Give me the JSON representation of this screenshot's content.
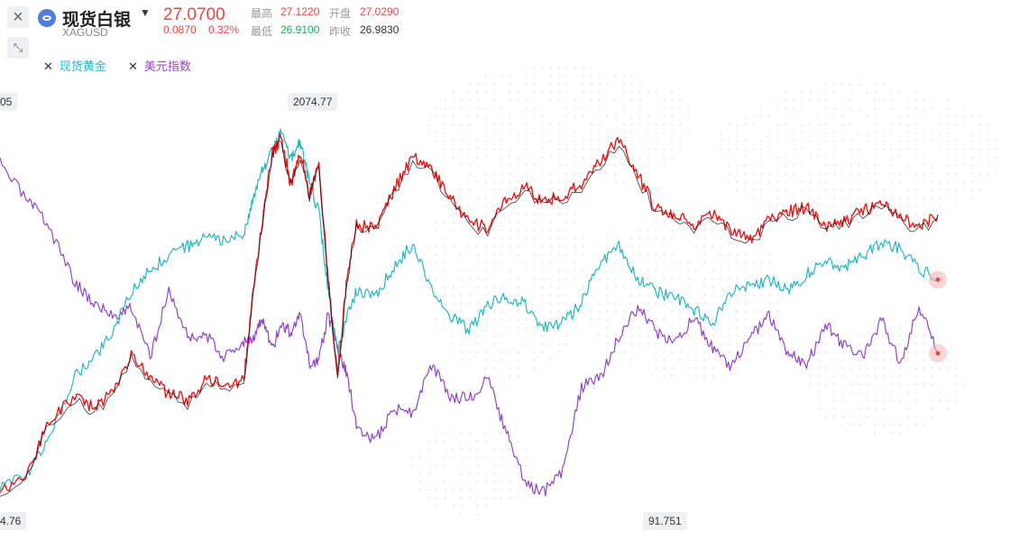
{
  "header": {
    "close_icon": "close-icon",
    "collapse_icon": "collapse-icon",
    "symbol_name": "现货白银",
    "symbol_code": "XAGUSD",
    "dropdown_icon": "chevron-down-icon",
    "price": "27.0700",
    "change": "0.0870",
    "change_pct": "0.32%",
    "high_label": "最高",
    "high_value": "27.1220",
    "open_label": "开盘",
    "open_value": "27.0290",
    "low_label": "最低",
    "low_value": "26.9100",
    "prev_close_label": "昨收",
    "prev_close_value": "26.9830"
  },
  "legend": [
    {
      "label": "现货黄金",
      "color": "#25b6c4"
    },
    {
      "label": "美元指数",
      "color": "#9344c4"
    }
  ],
  "colors": {
    "up": "#e51a1a",
    "down": "#111111",
    "gold": "#25b6c4",
    "usd": "#9344c4",
    "tag_bg": "#eef0f3"
  },
  "tags": {
    "left_top": "05",
    "gold_max": "2074.77",
    "left_bottom": "4.76",
    "usd_min": "91.751"
  },
  "chart_data": {
    "type": "line",
    "grid": false,
    "series": [
      {
        "name": "现货白银",
        "color": "#e51a1a",
        "x": [
          0,
          3,
          5,
          8,
          10,
          12,
          14,
          16,
          18,
          20,
          22,
          24,
          26,
          27,
          28,
          29,
          30,
          31,
          32,
          33,
          34,
          35,
          36,
          37,
          38,
          40,
          42,
          44,
          46,
          48,
          50,
          52,
          54,
          56,
          58,
          60,
          62,
          64,
          66,
          68,
          70,
          72,
          74,
          76,
          78,
          80,
          82,
          84,
          86,
          88,
          90,
          92,
          94,
          96,
          98,
          100
        ],
        "y": [
          14.1,
          14.7,
          16.8,
          17.8,
          17.4,
          18.0,
          19.6,
          18.6,
          17.9,
          17.7,
          18.5,
          18.3,
          18.5,
          22.0,
          25.0,
          27.5,
          28.2,
          26.3,
          27.6,
          25.9,
          27.2,
          22.5,
          18.6,
          22.6,
          24.7,
          24.5,
          26.1,
          27.4,
          26.9,
          25.8,
          24.8,
          24.6,
          25.7,
          26.2,
          25.6,
          25.9,
          26.3,
          27.3,
          28.1,
          26.7,
          25.3,
          25.1,
          24.7,
          25.2,
          24.5,
          24.1,
          24.9,
          25.2,
          25.4,
          24.6,
          24.8,
          25.3,
          25.5,
          25.0,
          24.6,
          25.1
        ]
      },
      {
        "name": "现货黄金",
        "color": "#25b6c4",
        "x": [
          0,
          3,
          5,
          8,
          10,
          12,
          14,
          16,
          18,
          20,
          22,
          24,
          26,
          27,
          28,
          29,
          30,
          31,
          32,
          33,
          34,
          35,
          36,
          37,
          38,
          40,
          42,
          44,
          46,
          48,
          50,
          52,
          54,
          56,
          58,
          60,
          62,
          64,
          66,
          68,
          70,
          72,
          74,
          76,
          78,
          80,
          82,
          84,
          86,
          88,
          90,
          92,
          94,
          96,
          98,
          100
        ],
        "y": [
          1475,
          1500,
          1555,
          1660,
          1690,
          1735,
          1800,
          1835,
          1860,
          1875,
          1890,
          1885,
          1895,
          1950,
          2000,
          2030,
          2062,
          2020,
          2045,
          1980,
          1930,
          1800,
          1700,
          1760,
          1800,
          1795,
          1840,
          1880,
          1810,
          1760,
          1735,
          1780,
          1790,
          1780,
          1740,
          1750,
          1780,
          1850,
          1875,
          1820,
          1800,
          1790,
          1770,
          1750,
          1800,
          1810,
          1820,
          1800,
          1830,
          1850,
          1840,
          1860,
          1880,
          1870,
          1840,
          1820
        ]
      },
      {
        "name": "美元指数",
        "color": "#9344c4",
        "x": [
          0,
          3,
          5,
          8,
          10,
          12,
          14,
          16,
          18,
          20,
          22,
          24,
          26,
          27,
          28,
          29,
          30,
          31,
          32,
          33,
          34,
          35,
          36,
          37,
          38,
          40,
          42,
          44,
          46,
          48,
          50,
          52,
          54,
          56,
          58,
          60,
          62,
          64,
          66,
          68,
          70,
          72,
          74,
          76,
          78,
          80,
          82,
          84,
          86,
          88,
          90,
          92,
          94,
          96,
          98,
          100
        ],
        "y": [
          99.6,
          98.7,
          98.2,
          96.8,
          96.3,
          96.0,
          96.2,
          95.0,
          96.6,
          95.5,
          95.5,
          95.0,
          95.4,
          95.5,
          95.9,
          95.2,
          95.8,
          95.6,
          96.0,
          94.8,
          95.0,
          96.0,
          95.2,
          94.6,
          93.4,
          93.0,
          93.8,
          93.7,
          94.8,
          94.1,
          94.0,
          94.5,
          93.2,
          92.0,
          91.8,
          92.3,
          94.3,
          94.5,
          95.5,
          96.2,
          95.6,
          95.3,
          96.0,
          95.2,
          94.8,
          95.5,
          96.0,
          95.1,
          94.8,
          95.8,
          95.3,
          95.0,
          95.9,
          94.9,
          96.2,
          95.1
        ]
      }
    ],
    "annotations": [
      "2074.77",
      "91.751"
    ]
  }
}
